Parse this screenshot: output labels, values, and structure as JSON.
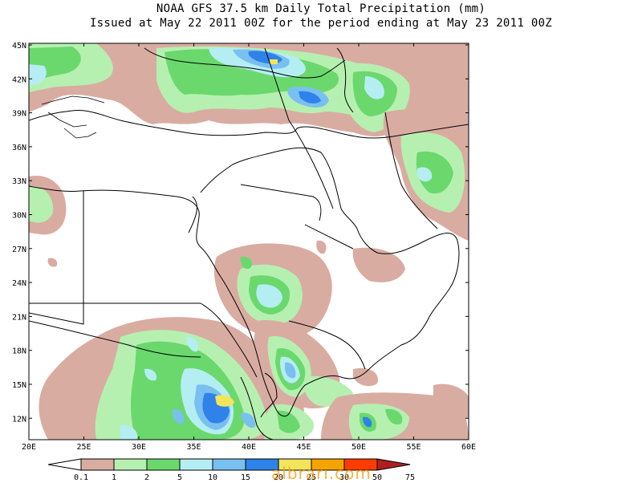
{
  "title_line1": "NOAA GFS 37.5 km Daily Total Precipitation (mm)",
  "title_line2": "Issued at May 22 2011 00Z for the period ending at May 23 2011 00Z",
  "lat_labels": [
    "45N",
    "42N",
    "39N",
    "36N",
    "33N",
    "30N",
    "27N",
    "24N",
    "21N",
    "18N",
    "15N",
    "12N"
  ],
  "lon_labels": [
    "20E",
    "25E",
    "30E",
    "35E",
    "40E",
    "45E",
    "50E",
    "55E",
    "60E"
  ],
  "colorbar": {
    "labels": [
      "0.1",
      "1",
      "2",
      "5",
      "10",
      "15",
      "20",
      "25",
      "30",
      "50",
      "75"
    ],
    "colors": [
      "#ffffff",
      "#d9aca2",
      "#b6f0b0",
      "#6bd86e",
      "#b4eef2",
      "#79c0f0",
      "#2f82e8",
      "#f3e55b",
      "#f4a400",
      "#ff3c00",
      "#b01f1f"
    ]
  },
  "watermark": "albrari.com"
}
